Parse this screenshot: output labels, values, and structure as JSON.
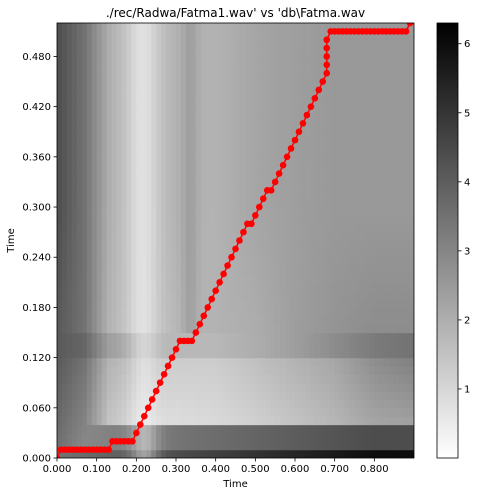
{
  "chart_data": {
    "type": "heatmap",
    "title": "./rec/Radwa/Fatma1.wav' vs 'db\\Fatma.wav",
    "xlabel": "Time",
    "ylabel": "Time",
    "xlim": [
      0,
      0.9
    ],
    "ylim": [
      0,
      0.52
    ],
    "x_ticks": [
      0,
      0.1,
      0.2,
      0.3,
      0.4,
      0.5,
      0.6,
      0.7,
      0.8
    ],
    "x_tick_labels": [
      "0.000",
      "0.100",
      "0.200",
      "0.300",
      "0.400",
      "0.500",
      "0.600",
      "0.700",
      "0.800"
    ],
    "y_ticks": [
      0,
      0.06,
      0.12,
      0.18,
      0.24,
      0.3,
      0.36,
      0.42,
      0.48
    ],
    "y_tick_labels": [
      "0.000",
      "0.060",
      "0.120",
      "0.180",
      "0.240",
      "0.300",
      "0.360",
      "0.420",
      "0.480"
    ],
    "colorbar": {
      "colormap": "gray_r",
      "range": [
        0,
        6.3
      ],
      "ticks": [
        1,
        2,
        3,
        4,
        5,
        6
      ],
      "tick_labels": [
        "1",
        "2",
        "3",
        "4",
        "5",
        "6"
      ]
    },
    "path_color": "#ff0000",
    "path": [
      [
        0.0,
        0.0
      ],
      [
        0.01,
        0.01
      ],
      [
        0.02,
        0.01
      ],
      [
        0.03,
        0.01
      ],
      [
        0.04,
        0.01
      ],
      [
        0.05,
        0.01
      ],
      [
        0.06,
        0.01
      ],
      [
        0.07,
        0.01
      ],
      [
        0.08,
        0.01
      ],
      [
        0.09,
        0.01
      ],
      [
        0.1,
        0.01
      ],
      [
        0.11,
        0.01
      ],
      [
        0.12,
        0.01
      ],
      [
        0.13,
        0.01
      ],
      [
        0.14,
        0.02
      ],
      [
        0.15,
        0.02
      ],
      [
        0.16,
        0.02
      ],
      [
        0.17,
        0.02
      ],
      [
        0.18,
        0.02
      ],
      [
        0.19,
        0.02
      ],
      [
        0.2,
        0.03
      ],
      [
        0.21,
        0.04
      ],
      [
        0.22,
        0.05
      ],
      [
        0.23,
        0.06
      ],
      [
        0.24,
        0.07
      ],
      [
        0.25,
        0.08
      ],
      [
        0.26,
        0.09
      ],
      [
        0.27,
        0.1
      ],
      [
        0.28,
        0.11
      ],
      [
        0.29,
        0.12
      ],
      [
        0.3,
        0.13
      ],
      [
        0.31,
        0.14
      ],
      [
        0.32,
        0.14
      ],
      [
        0.33,
        0.14
      ],
      [
        0.34,
        0.14
      ],
      [
        0.35,
        0.15
      ],
      [
        0.36,
        0.16
      ],
      [
        0.37,
        0.17
      ],
      [
        0.38,
        0.18
      ],
      [
        0.39,
        0.19
      ],
      [
        0.4,
        0.2
      ],
      [
        0.41,
        0.21
      ],
      [
        0.42,
        0.22
      ],
      [
        0.43,
        0.23
      ],
      [
        0.44,
        0.24
      ],
      [
        0.45,
        0.25
      ],
      [
        0.46,
        0.26
      ],
      [
        0.47,
        0.27
      ],
      [
        0.48,
        0.28
      ],
      [
        0.49,
        0.28
      ],
      [
        0.5,
        0.29
      ],
      [
        0.51,
        0.3
      ],
      [
        0.52,
        0.31
      ],
      [
        0.53,
        0.32
      ],
      [
        0.54,
        0.32
      ],
      [
        0.55,
        0.33
      ],
      [
        0.56,
        0.34
      ],
      [
        0.57,
        0.35
      ],
      [
        0.58,
        0.36
      ],
      [
        0.59,
        0.37
      ],
      [
        0.6,
        0.38
      ],
      [
        0.61,
        0.39
      ],
      [
        0.62,
        0.4
      ],
      [
        0.63,
        0.41
      ],
      [
        0.64,
        0.42
      ],
      [
        0.65,
        0.43
      ],
      [
        0.66,
        0.44
      ],
      [
        0.67,
        0.45
      ],
      [
        0.68,
        0.46
      ],
      [
        0.68,
        0.47
      ],
      [
        0.68,
        0.48
      ],
      [
        0.68,
        0.49
      ],
      [
        0.68,
        0.5
      ],
      [
        0.69,
        0.51
      ],
      [
        0.7,
        0.51
      ],
      [
        0.71,
        0.51
      ],
      [
        0.72,
        0.51
      ],
      [
        0.73,
        0.51
      ],
      [
        0.74,
        0.51
      ],
      [
        0.75,
        0.51
      ],
      [
        0.76,
        0.51
      ],
      [
        0.77,
        0.51
      ],
      [
        0.78,
        0.51
      ],
      [
        0.79,
        0.51
      ],
      [
        0.8,
        0.51
      ],
      [
        0.81,
        0.51
      ],
      [
        0.82,
        0.51
      ],
      [
        0.83,
        0.51
      ],
      [
        0.84,
        0.51
      ],
      [
        0.85,
        0.51
      ],
      [
        0.86,
        0.51
      ],
      [
        0.87,
        0.51
      ],
      [
        0.88,
        0.51
      ],
      [
        0.89,
        0.52
      ]
    ]
  }
}
